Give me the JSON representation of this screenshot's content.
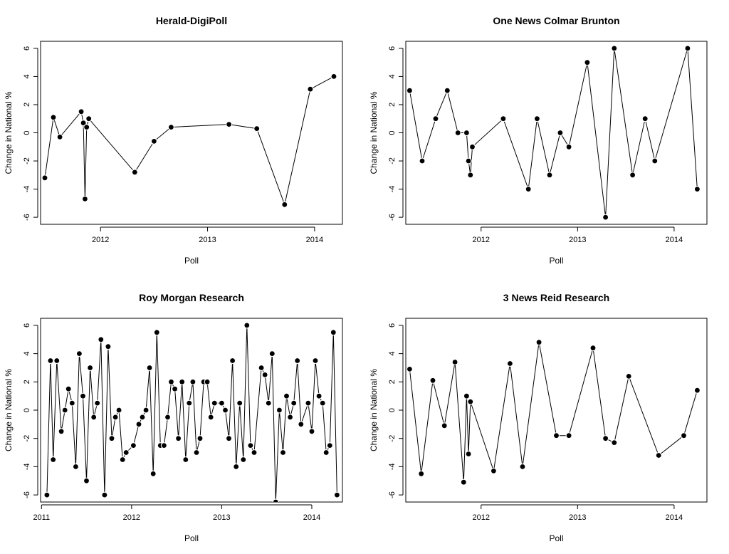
{
  "chart_data": [
    {
      "type": "line",
      "title": "Herald-DigiPoll",
      "xlabel": "Poll",
      "ylabel": "Change in National %",
      "xlim": [
        2011.44,
        2014.26
      ],
      "ylim": [
        -6.5,
        6.5
      ],
      "xticks": [
        2012,
        2013,
        2014
      ],
      "yticks": [
        -6,
        -4,
        -2,
        0,
        2,
        4,
        6
      ],
      "series": [
        {
          "x": [
            2011.48,
            2011.56,
            2011.62,
            2011.82,
            2011.84,
            2011.855,
            2011.87,
            2011.89,
            2012.32,
            2012.5,
            2012.66,
            2013.2,
            2013.46,
            2013.72,
            2013.96,
            2014.18
          ],
          "y": [
            -3.2,
            1.1,
            -0.3,
            1.5,
            0.7,
            -4.7,
            0.4,
            1.0,
            -2.8,
            -0.6,
            0.4,
            0.6,
            0.3,
            -5.1,
            3.1,
            4.0
          ]
        }
      ]
    },
    {
      "type": "line",
      "title": "One News Colmar Brunton",
      "xlabel": "Poll",
      "ylabel": "Change in National %",
      "xlim": [
        2011.22,
        2014.34
      ],
      "ylim": [
        -6.5,
        6.5
      ],
      "xticks": [
        2012,
        2013,
        2014
      ],
      "yticks": [
        -6,
        -4,
        -2,
        0,
        2,
        4,
        6
      ],
      "series": [
        {
          "x": [
            2011.26,
            2011.39,
            2011.53,
            2011.65,
            2011.76,
            2011.85,
            2011.87,
            2011.89,
            2011.91,
            2012.23,
            2012.49,
            2012.58,
            2012.71,
            2012.82,
            2012.91,
            2013.1,
            2013.29,
            2013.38,
            2013.57,
            2013.7,
            2013.8,
            2014.14,
            2014.24
          ],
          "y": [
            3,
            -2,
            1,
            3,
            0,
            0,
            -2,
            -3,
            -1,
            1,
            -4,
            1,
            -3,
            0,
            -1,
            5,
            -6,
            6,
            -3,
            1,
            -2,
            6,
            -4
          ]
        }
      ]
    },
    {
      "type": "line",
      "title": "Roy Morgan Research",
      "xlabel": "Poll",
      "ylabel": "Change in National %",
      "xlim": [
        2010.99,
        2014.34
      ],
      "ylim": [
        -6.5,
        6.5
      ],
      "xticks": [
        2011,
        2012,
        2013,
        2014
      ],
      "yticks": [
        -6,
        -4,
        -2,
        0,
        2,
        4,
        6
      ],
      "series": [
        {
          "x": [
            2011.06,
            2011.1,
            2011.13,
            2011.17,
            2011.22,
            2011.26,
            2011.3,
            2011.34,
            2011.38,
            2011.42,
            2011.46,
            2011.5,
            2011.54,
            2011.58,
            2011.62,
            2011.66,
            2011.7,
            2011.74,
            2011.78,
            2011.82,
            2011.86,
            2011.9,
            2011.94,
            2012.02,
            2012.08,
            2012.12,
            2012.16,
            2012.2,
            2012.24,
            2012.28,
            2012.32,
            2012.36,
            2012.4,
            2012.44,
            2012.48,
            2012.52,
            2012.56,
            2012.6,
            2012.64,
            2012.68,
            2012.72,
            2012.76,
            2012.8,
            2012.84,
            2012.88,
            2012.92,
            2013.0,
            2013.04,
            2013.08,
            2013.12,
            2013.16,
            2013.2,
            2013.24,
            2013.28,
            2013.32,
            2013.36,
            2013.44,
            2013.48,
            2013.52,
            2013.56,
            2013.6,
            2013.64,
            2013.68,
            2013.72,
            2013.76,
            2013.8,
            2013.84,
            2013.88,
            2013.96,
            2014.0,
            2014.04,
            2014.08,
            2014.12,
            2014.16,
            2014.2,
            2014.24,
            2014.28
          ],
          "y": [
            -6,
            3.5,
            -3.5,
            3.5,
            -1.5,
            0,
            1.5,
            0.5,
            -4,
            4,
            1,
            -5,
            3,
            -0.5,
            0.5,
            5,
            -6,
            4.5,
            -2,
            -0.5,
            0,
            -3.5,
            -3,
            -2.5,
            -1,
            -0.5,
            0,
            3,
            -4.5,
            5.5,
            -2.5,
            -2.5,
            -0.5,
            2,
            1.5,
            -2,
            2,
            -3.5,
            0.5,
            2,
            -3,
            -2,
            2,
            2,
            -0.5,
            0.5,
            0.5,
            0,
            -2,
            3.5,
            -4,
            0.5,
            -3.5,
            6,
            -2.5,
            -3,
            3,
            2.5,
            0.5,
            4,
            -6.5,
            0,
            -3,
            1,
            -0.5,
            0.5,
            3.5,
            -1,
            0.5,
            -1.5,
            3.5,
            1,
            0.5,
            -3,
            -2.5,
            5.5,
            -6
          ]
        }
      ]
    },
    {
      "type": "line",
      "title": "3 News Reid Research",
      "xlabel": "Poll",
      "ylabel": "Change in National %",
      "xlim": [
        2011.22,
        2014.34
      ],
      "ylim": [
        -6.5,
        6.5
      ],
      "xticks": [
        2012,
        2013,
        2014
      ],
      "yticks": [
        -6,
        -4,
        -2,
        0,
        2,
        4,
        6
      ],
      "series": [
        {
          "x": [
            2011.26,
            2011.38,
            2011.5,
            2011.62,
            2011.73,
            2011.82,
            2011.85,
            2011.87,
            2011.89,
            2012.13,
            2012.3,
            2012.43,
            2012.6,
            2012.78,
            2012.91,
            2013.16,
            2013.29,
            2013.38,
            2013.53,
            2013.84,
            2014.1,
            2014.24
          ],
          "y": [
            2.9,
            -4.5,
            2.1,
            -1.1,
            3.4,
            -5.1,
            1.0,
            -3.1,
            0.6,
            -4.3,
            3.3,
            -4.0,
            4.8,
            -1.8,
            -1.8,
            4.4,
            -2.0,
            -2.3,
            2.4,
            -3.2,
            -1.8,
            1.4
          ]
        }
      ]
    }
  ]
}
